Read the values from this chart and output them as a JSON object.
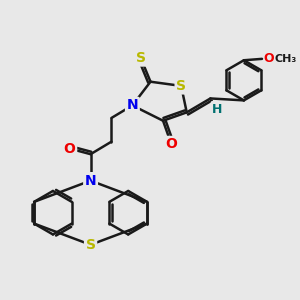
{
  "bg_color": "#e8e8e8",
  "bond_color": "#1a1a1a",
  "bond_width": 1.8,
  "atom_colors": {
    "S": "#b8b800",
    "N": "#0000ee",
    "O": "#ee0000",
    "H": "#007070",
    "C": "#1a1a1a"
  },
  "fig_width": 3.0,
  "fig_height": 3.0,
  "dpi": 100
}
